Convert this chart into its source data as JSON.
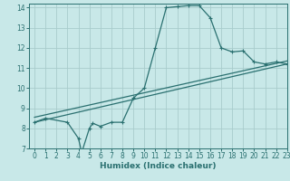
{
  "xlabel": "Humidex (Indice chaleur)",
  "xlim": [
    -0.5,
    23
  ],
  "ylim": [
    7,
    14.2
  ],
  "xticks": [
    0,
    1,
    2,
    3,
    4,
    5,
    6,
    7,
    8,
    9,
    10,
    11,
    12,
    13,
    14,
    15,
    16,
    17,
    18,
    19,
    20,
    21,
    22,
    23
  ],
  "yticks": [
    7,
    8,
    9,
    10,
    11,
    12,
    13,
    14
  ],
  "bg_color": "#c8e8e8",
  "grid_color": "#a8cccc",
  "line_color": "#2a7070",
  "line1_x": [
    0,
    1,
    3,
    4,
    4.3,
    5,
    5.3,
    6,
    7,
    8,
    9,
    10,
    11,
    12,
    13,
    14,
    15,
    16,
    17,
    18,
    19,
    20,
    21,
    22,
    23
  ],
  "line1_y": [
    8.3,
    8.5,
    8.3,
    7.5,
    6.8,
    8.0,
    8.25,
    8.1,
    8.3,
    8.3,
    9.5,
    10.0,
    12.0,
    14.0,
    14.05,
    14.1,
    14.1,
    13.5,
    12.0,
    11.8,
    11.85,
    11.3,
    11.2,
    11.3,
    11.2
  ],
  "line2_x": [
    0,
    23
  ],
  "line2_y": [
    8.3,
    11.2
  ],
  "line3_x": [
    0,
    23
  ],
  "line3_y": [
    8.55,
    11.35
  ],
  "marker": "P",
  "markersize": 2.5
}
